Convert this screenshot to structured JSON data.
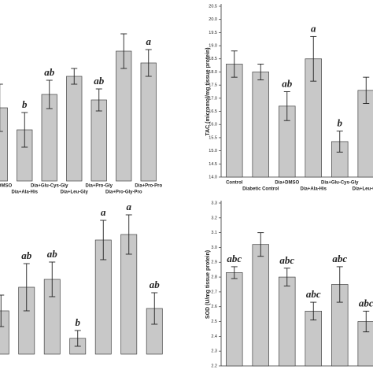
{
  "chart_data": [
    {
      "type": "bar",
      "color": "#c8c8c8",
      "categories": [
        "Dia+DMSO",
        "Dia+Ala-His",
        "Dia+Glu-Cys-Gly",
        "Dia+Leu-Gly",
        "Dia+Pro-Gly",
        "Dia+Pro-Gly-Pro",
        "Dia+Pro-Pro"
      ],
      "values": [
        93,
        65,
        110,
        133,
        103,
        165,
        150
      ],
      "errors": [
        30,
        22,
        18,
        10,
        14,
        22,
        17
      ],
      "labels": [
        null,
        "b",
        "ab",
        null,
        "ab",
        null,
        "a"
      ],
      "ylim": [
        0,
        220
      ]
    },
    {
      "type": "bar",
      "color": "#c8c8c8",
      "ylabel": "TAC (micromol/mg tissue protein)",
      "categories": [
        "Control",
        "Diabetic Control",
        "Dia+DMSO",
        "Dia+Ala-His",
        "Dia+Glu-Cys-Gly",
        "Dia+Leu-Gly"
      ],
      "values": [
        18.3,
        18.0,
        16.7,
        18.5,
        15.35,
        17.3
      ],
      "errors": [
        0.5,
        0.3,
        0.55,
        0.85,
        0.4,
        0.5
      ],
      "labels": [
        null,
        null,
        "ab",
        "a",
        "b",
        null
      ],
      "ylim": [
        14,
        20.5
      ],
      "yticks": [
        {
          "value": 14,
          "label": "14.0"
        },
        14.5,
        {
          "value": 15,
          "label": "15.0"
        },
        15.5,
        {
          "value": 16,
          "label": "16.0"
        },
        16.5,
        {
          "value": 17,
          "label": "17.0"
        },
        17.5,
        {
          "value": 18,
          "label": "18.0"
        },
        18.5,
        {
          "value": 19,
          "label": "19.0"
        },
        19.5,
        {
          "value": 20,
          "label": "20.0"
        },
        20.5
      ]
    },
    {
      "type": "bar",
      "color": "#c8c8c8",
      "values": [
        55,
        85,
        95,
        20,
        145,
        152,
        58
      ],
      "errors": [
        20,
        30,
        22,
        10,
        25,
        25,
        20
      ],
      "labels": [
        null,
        "ab",
        "ab",
        "b",
        "a",
        "a",
        "ab"
      ],
      "ylim": [
        0,
        180
      ]
    },
    {
      "type": "bar",
      "color": "#c8c8c8",
      "ylabel": "SOD (U/mg tissue protein)",
      "values": [
        2.83,
        3.02,
        2.8,
        2.57,
        2.75,
        2.5
      ],
      "errors": [
        0.04,
        0.08,
        0.06,
        0.06,
        0.12,
        0.07
      ],
      "labels": [
        "abc",
        null,
        "abc",
        "abc",
        "abc",
        "abc"
      ],
      "ylim": [
        2.2,
        3.3
      ],
      "yticks": [
        2.2,
        2.3,
        2.4,
        2.5,
        2.6,
        2.7,
        2.8,
        2.9,
        {
          "value": 3,
          "label": "3.0"
        },
        3.1,
        3.2,
        3.3
      ]
    }
  ]
}
